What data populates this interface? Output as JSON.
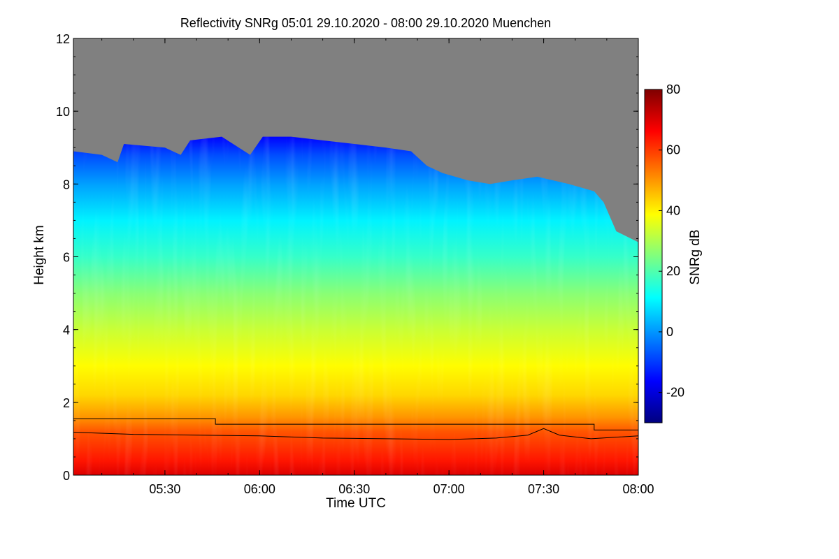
{
  "chart_data": {
    "type": "heatmap",
    "title": "Reflectivity SNRg   05:01 29.10.2020 - 08:00 29.10.2020 Muenchen",
    "xlabel": "Time UTC",
    "ylabel": "Height km",
    "x_range": [
      "05:01",
      "08:00"
    ],
    "x_ticks": [
      "05:30",
      "06:00",
      "06:30",
      "07:00",
      "07:30",
      "08:00"
    ],
    "y_range": [
      0,
      12
    ],
    "y_ticks": [
      "0",
      "2",
      "4",
      "6",
      "8",
      "10",
      "12"
    ],
    "colorbar": {
      "label": "SNRg dB",
      "range": [
        -30,
        80
      ],
      "ticks": [
        "-20",
        "0",
        "20",
        "40",
        "60",
        "80"
      ],
      "colormap": [
        "#00007f",
        "#0000ff",
        "#007fff",
        "#00ffff",
        "#7fff7f",
        "#ffff00",
        "#ff7f00",
        "#ff0000",
        "#7f0000"
      ]
    },
    "no_signal_color": "#808080",
    "signal_top_km": [
      {
        "t": "05:01",
        "h": 8.9
      },
      {
        "t": "05:10",
        "h": 8.8
      },
      {
        "t": "05:15",
        "h": 8.6
      },
      {
        "t": "05:17",
        "h": 9.1
      },
      {
        "t": "05:30",
        "h": 9.0
      },
      {
        "t": "05:35",
        "h": 8.8
      },
      {
        "t": "05:38",
        "h": 9.2
      },
      {
        "t": "05:48",
        "h": 9.3
      },
      {
        "t": "05:57",
        "h": 8.8
      },
      {
        "t": "06:01",
        "h": 9.3
      },
      {
        "t": "06:10",
        "h": 9.3
      },
      {
        "t": "06:20",
        "h": 9.2
      },
      {
        "t": "06:30",
        "h": 9.1
      },
      {
        "t": "06:40",
        "h": 9.0
      },
      {
        "t": "06:48",
        "h": 8.9
      },
      {
        "t": "06:53",
        "h": 8.5
      },
      {
        "t": "06:58",
        "h": 8.3
      },
      {
        "t": "07:06",
        "h": 8.1
      },
      {
        "t": "07:13",
        "h": 8.0
      },
      {
        "t": "07:20",
        "h": 8.1
      },
      {
        "t": "07:28",
        "h": 8.2
      },
      {
        "t": "07:38",
        "h": 8.0
      },
      {
        "t": "07:46",
        "h": 7.8
      },
      {
        "t": "07:49",
        "h": 7.5
      },
      {
        "t": "07:53",
        "h": 6.7
      },
      {
        "t": "08:00",
        "h": 6.4
      }
    ],
    "profile": [
      {
        "h": 0.0,
        "snr": 70
      },
      {
        "h": 0.4,
        "snr": 64
      },
      {
        "h": 1.2,
        "snr": 57
      },
      {
        "h": 1.6,
        "snr": 50
      },
      {
        "h": 2.2,
        "snr": 43
      },
      {
        "h": 3.0,
        "snr": 39
      },
      {
        "h": 4.0,
        "snr": 33
      },
      {
        "h": 5.0,
        "snr": 26
      },
      {
        "h": 6.0,
        "snr": 17
      },
      {
        "h": 7.0,
        "snr": 10
      },
      {
        "h": 8.0,
        "snr": 1
      },
      {
        "h": 8.8,
        "snr": -8
      },
      {
        "h": 9.3,
        "snr": -16
      }
    ],
    "lines": [
      {
        "points": [
          {
            "t": "05:01",
            "h": 1.55
          },
          {
            "t": "05:46",
            "h": 1.55
          },
          {
            "t": "05:46",
            "h": 1.4
          },
          {
            "t": "07:46",
            "h": 1.4
          },
          {
            "t": "07:46",
            "h": 1.24
          },
          {
            "t": "08:00",
            "h": 1.24
          }
        ]
      },
      {
        "points": [
          {
            "t": "05:01",
            "h": 1.18
          },
          {
            "t": "05:20",
            "h": 1.12
          },
          {
            "t": "05:40",
            "h": 1.1
          },
          {
            "t": "06:00",
            "h": 1.08
          },
          {
            "t": "06:20",
            "h": 1.02
          },
          {
            "t": "06:40",
            "h": 1.0
          },
          {
            "t": "07:00",
            "h": 0.98
          },
          {
            "t": "07:15",
            "h": 1.02
          },
          {
            "t": "07:25",
            "h": 1.1
          },
          {
            "t": "07:30",
            "h": 1.28
          },
          {
            "t": "07:35",
            "h": 1.1
          },
          {
            "t": "07:45",
            "h": 1.0
          },
          {
            "t": "08:00",
            "h": 1.08
          }
        ]
      }
    ]
  }
}
